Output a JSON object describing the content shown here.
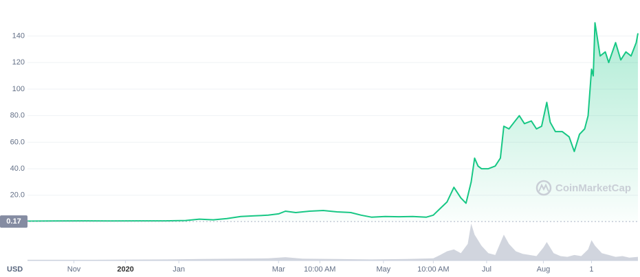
{
  "chart_data": [
    {
      "type": "line",
      "x": [
        0,
        16,
        32,
        48,
        64,
        80,
        92,
        100,
        108,
        116,
        124,
        132,
        140,
        146,
        150,
        156,
        164,
        172,
        180,
        188,
        194,
        200,
        208,
        216,
        224,
        232,
        236,
        240,
        244,
        248,
        252,
        255,
        258,
        260,
        262,
        264,
        268,
        272,
        275,
        277,
        280,
        283,
        286,
        289,
        293,
        296,
        299,
        302,
        304,
        307,
        311,
        315,
        318,
        321,
        324,
        326,
        328,
        329,
        330,
        333,
        336,
        338,
        342,
        345,
        348,
        351,
        354,
        355
      ],
      "values": [
        0.5,
        0.6,
        0.7,
        0.6,
        0.7,
        0.7,
        1.0,
        2.0,
        1.5,
        2.5,
        4,
        4.5,
        5,
        6,
        8,
        7,
        8,
        8.5,
        7.5,
        7,
        5,
        3.5,
        4,
        3.8,
        4,
        3.5,
        5,
        10,
        15,
        26,
        18,
        14,
        30,
        48,
        42,
        40,
        40,
        42,
        48,
        72,
        70,
        75,
        80,
        74,
        76,
        70,
        72,
        90,
        75,
        68,
        68,
        64,
        53,
        66,
        70,
        80,
        115,
        110,
        150,
        125,
        128,
        120,
        135,
        122,
        128,
        125,
        135,
        142
      ],
      "color": "#16c784",
      "xlim": [
        0,
        355
      ],
      "ylim": [
        0,
        163
      ],
      "yticks": [
        {
          "value": 20,
          "label": "20.0"
        },
        {
          "value": 40,
          "label": "40.0"
        },
        {
          "value": 60,
          "label": "60.0"
        },
        {
          "value": 80,
          "label": "80.0"
        },
        100,
        120,
        140
      ],
      "xticks": [
        {
          "value": 27,
          "label": "Nov"
        },
        {
          "value": 57,
          "label": "2020"
        },
        {
          "value": 88,
          "label": "Jan"
        },
        {
          "value": 146,
          "label": "Mar"
        },
        {
          "value": 170,
          "label": "10:00 AM"
        },
        {
          "value": 207,
          "label": "May"
        },
        {
          "value": 236,
          "label": "10:00 AM"
        },
        {
          "value": 267,
          "label": "Jul"
        },
        {
          "value": 300,
          "label": "Aug"
        },
        {
          "value": 328,
          "label": "1"
        }
      ],
      "price_tag": {
        "value": 0.17,
        "label": "0.17"
      },
      "currency": "USD",
      "watermark": "CoinMarketCap",
      "grid": true
    },
    {
      "type": "area",
      "x": [
        0,
        40,
        80,
        100,
        120,
        140,
        150,
        160,
        180,
        200,
        220,
        236,
        240,
        244,
        248,
        252,
        256,
        258,
        260,
        264,
        268,
        272,
        277,
        280,
        284,
        288,
        292,
        296,
        300,
        302,
        306,
        310,
        314,
        318,
        322,
        326,
        328,
        330,
        334,
        338,
        342,
        346,
        350,
        355
      ],
      "values": [
        2,
        2,
        3,
        4,
        5,
        6,
        9,
        5,
        4,
        3,
        4,
        6,
        15,
        25,
        30,
        20,
        45,
        100,
        70,
        40,
        20,
        15,
        70,
        45,
        25,
        18,
        15,
        12,
        35,
        50,
        20,
        12,
        10,
        15,
        12,
        30,
        55,
        40,
        20,
        15,
        10,
        12,
        8,
        10
      ],
      "color": "#c5cad6",
      "xlim": [
        0,
        355
      ],
      "ylim": [
        0,
        100
      ]
    }
  ]
}
